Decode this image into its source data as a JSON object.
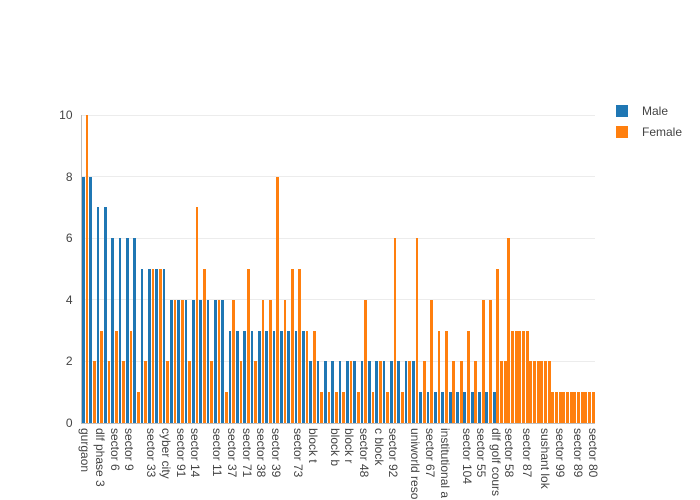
{
  "chart_data": {
    "type": "bar",
    "title": "",
    "xlabel": "",
    "ylabel": "",
    "ylim": [
      0,
      10.5
    ],
    "yticks": [
      0,
      2,
      4,
      6,
      8,
      10
    ],
    "grid": true,
    "legend_position": "top-right",
    "series": [
      {
        "name": "Male",
        "color": "#1f77b4"
      },
      {
        "name": "Female",
        "color": "#ff7f0e"
      }
    ],
    "locations": [
      {
        "label": "gurgaon",
        "male": 8,
        "female": 10
      },
      {
        "male": 8,
        "female": 2
      },
      {
        "label": "dlf phase 3",
        "male": 7,
        "female": 3
      },
      {
        "male": 7,
        "female": 2
      },
      {
        "label": "sector 6",
        "male": 6,
        "female": 3
      },
      {
        "male": 6,
        "female": 2
      },
      {
        "label": "sector 9",
        "male": 6,
        "female": 3
      },
      {
        "male": 6,
        "female": 1
      },
      {
        "male": 5,
        "female": 2
      },
      {
        "label": "sector 33",
        "male": 5,
        "female": 5
      },
      {
        "male": 5,
        "female": 5
      },
      {
        "label": "cyber city",
        "male": 5,
        "female": 2
      },
      {
        "male": 4,
        "female": 4
      },
      {
        "label": "sector 91",
        "male": 4,
        "female": 4
      },
      {
        "male": 4,
        "female": 2
      },
      {
        "label": "sector 14",
        "male": 4,
        "female": 7
      },
      {
        "male": 4,
        "female": 5
      },
      {
        "male": 4,
        "female": 2
      },
      {
        "label": "sector 11",
        "male": 4,
        "female": 4
      },
      {
        "male": 4,
        "female": 1
      },
      {
        "label": "sector 37",
        "male": 3,
        "female": 4
      },
      {
        "male": 3,
        "female": 2
      },
      {
        "label": "sector 71",
        "male": 3,
        "female": 5
      },
      {
        "male": 3,
        "female": 2
      },
      {
        "label": "sector 38",
        "male": 3,
        "female": 4
      },
      {
        "male": 3,
        "female": 4
      },
      {
        "label": "sector 39",
        "male": 3,
        "female": 8
      },
      {
        "male": 3,
        "female": 4
      },
      {
        "male": 3,
        "female": 5
      },
      {
        "label": "sector 73",
        "male": 3,
        "female": 5
      },
      {
        "male": 3,
        "female": 3
      },
      {
        "label": "block t",
        "male": 2,
        "female": 3
      },
      {
        "male": 2,
        "female": 1
      },
      {
        "male": 2,
        "female": 1
      },
      {
        "label": "block b",
        "male": 2,
        "female": 1
      },
      {
        "male": 2,
        "female": 1
      },
      {
        "label": "block r",
        "male": 2,
        "female": 2
      },
      {
        "male": 2,
        "female": 1
      },
      {
        "label": "sector 48",
        "male": 2,
        "female": 4
      },
      {
        "male": 2,
        "female": 1
      },
      {
        "label": "c block",
        "male": 2,
        "female": 2
      },
      {
        "male": 2,
        "female": 1
      },
      {
        "label": "sector 92",
        "male": 2,
        "female": 6
      },
      {
        "male": 2,
        "female": 1
      },
      {
        "male": 2,
        "female": 2
      },
      {
        "label": "uniworld reso",
        "male": 2,
        "female": 6
      },
      {
        "male": 1,
        "female": 2
      },
      {
        "label": "sector 67",
        "male": 1,
        "female": 4
      },
      {
        "male": 1,
        "female": 3
      },
      {
        "label": "institutional a",
        "male": 1,
        "female": 3
      },
      {
        "male": 1,
        "female": 2
      },
      {
        "male": 1,
        "female": 2
      },
      {
        "label": "sector 104",
        "male": 1,
        "female": 3
      },
      {
        "male": 1,
        "female": 2
      },
      {
        "label": "sector 55",
        "male": 1,
        "female": 4
      },
      {
        "male": 1,
        "female": 4
      },
      {
        "label": "dlf golf cours",
        "male": 1,
        "female": 5
      },
      {
        "female": 2
      },
      {
        "female": 2
      },
      {
        "label": "sector 58",
        "female": 6
      },
      {
        "female": 3
      },
      {
        "female": 3
      },
      {
        "female": 3
      },
      {
        "female": 3
      },
      {
        "label": "sector 87",
        "female": 3
      },
      {
        "female": 2
      },
      {
        "female": 2
      },
      {
        "female": 2
      },
      {
        "female": 2
      },
      {
        "label": "sushant lok",
        "female": 2
      },
      {
        "female": 2
      },
      {
        "female": 1
      },
      {
        "female": 1
      },
      {
        "label": "sector 99",
        "female": 1
      },
      {
        "female": 1
      },
      {
        "female": 1
      },
      {
        "female": 1
      },
      {
        "female": 1
      },
      {
        "label": "sector 89",
        "female": 1
      },
      {
        "female": 1
      },
      {
        "female": 1
      },
      {
        "female": 1
      },
      {
        "label": "sector 80",
        "female": 1
      }
    ]
  },
  "legend": {
    "items": [
      {
        "label": "Male",
        "color": "#1f77b4"
      },
      {
        "label": "Female",
        "color": "#ff7f0e"
      }
    ]
  }
}
